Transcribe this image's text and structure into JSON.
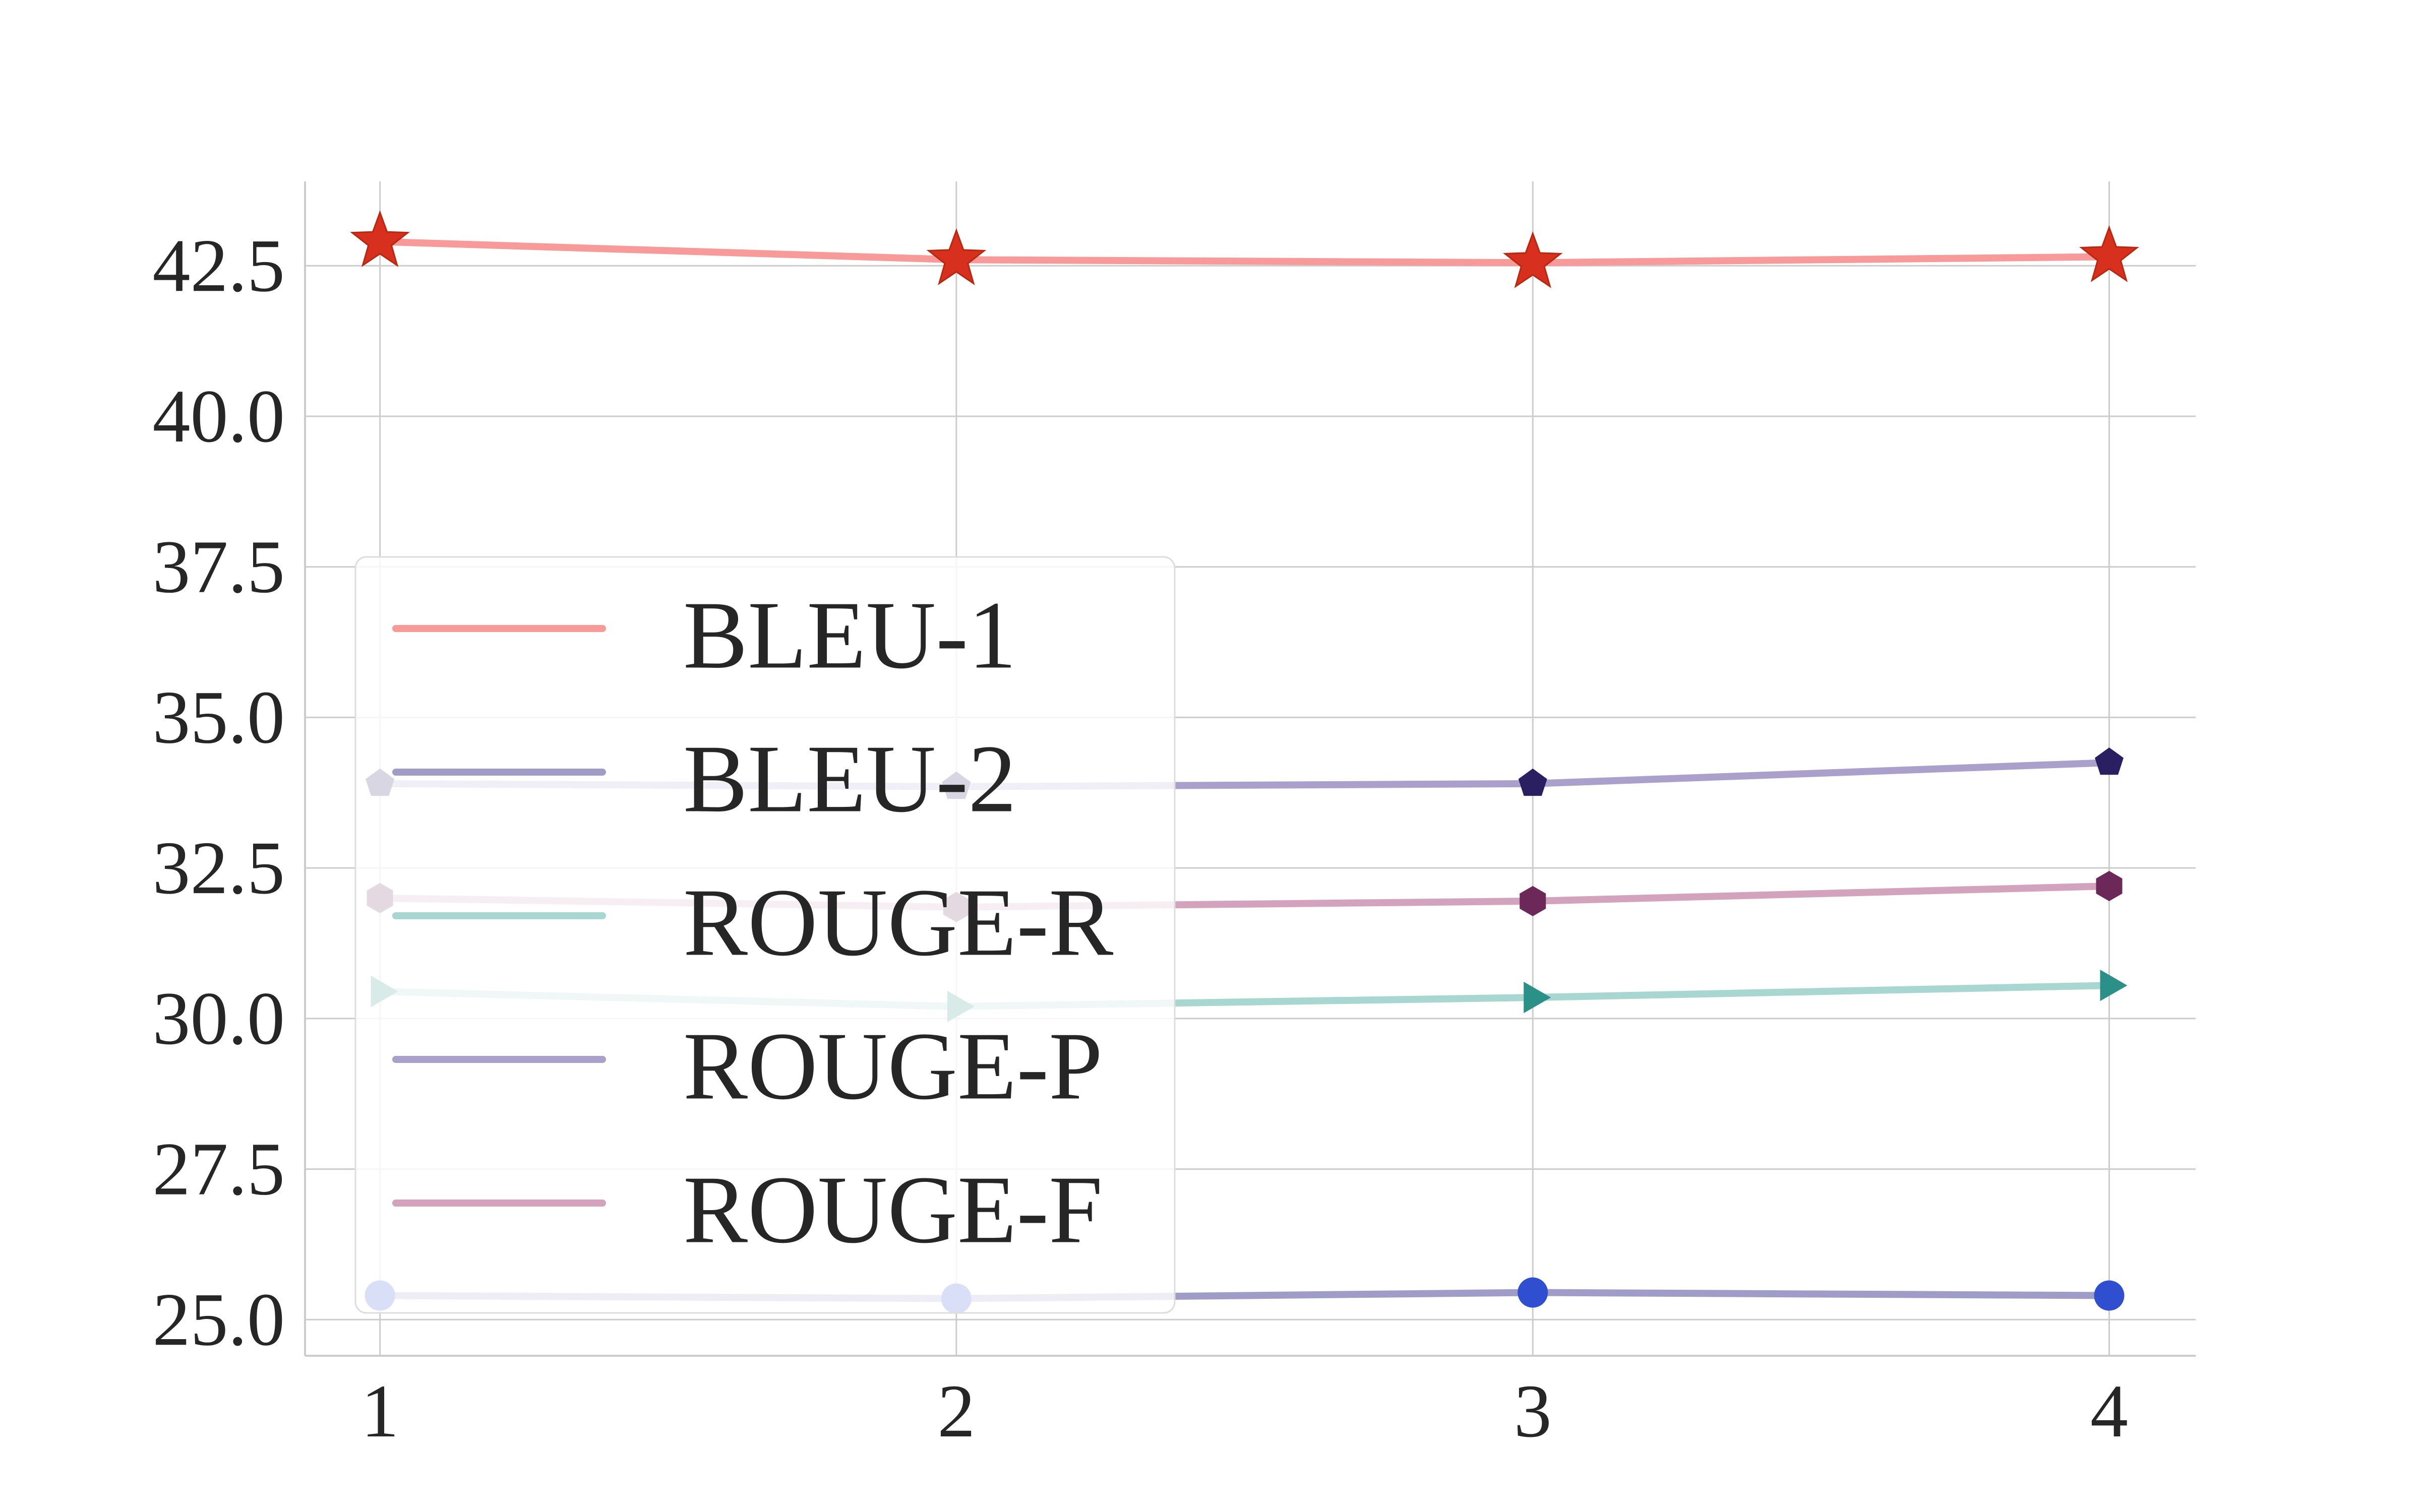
{
  "chart_data": {
    "type": "line",
    "title": "",
    "xlabel": "",
    "ylabel": "",
    "x": [
      1,
      2,
      3,
      4
    ],
    "x_tick_labels": [
      "1",
      "2",
      "3",
      "4"
    ],
    "xlim": [
      0.87,
      4.15
    ],
    "ylim": [
      24.4,
      43.9
    ],
    "y_ticks": [
      25.0,
      27.5,
      30.0,
      32.5,
      35.0,
      37.5,
      40.0,
      42.5
    ],
    "y_tick_labels": [
      "25.0",
      "27.5",
      "30.0",
      "32.5",
      "35.0",
      "37.5",
      "40.0",
      "42.5"
    ],
    "grid": true,
    "legend_position": "center-left",
    "series": [
      {
        "name": "BLEU-1",
        "values": [
          42.9,
          42.6,
          42.55,
          42.65
        ],
        "line_color": "#f89a9a",
        "marker_color": "#d7301f",
        "marker": "star"
      },
      {
        "name": "BLEU-2",
        "values": [
          25.4,
          25.35,
          25.45,
          25.4
        ],
        "line_color": "#9f9cc8",
        "marker_color": "#2f4fd0",
        "marker": "circle"
      },
      {
        "name": "ROUGE-R",
        "values": [
          30.45,
          30.2,
          30.35,
          30.55
        ],
        "line_color": "#a8d6d0",
        "marker_color": "#2a9088",
        "marker": "triangle-right"
      },
      {
        "name": "ROUGE-P",
        "values": [
          33.9,
          33.85,
          33.9,
          34.25
        ],
        "line_color": "#ab9fcb",
        "marker_color": "#2a1f60",
        "marker": "pentagon"
      },
      {
        "name": "ROUGE-F",
        "values": [
          32.0,
          31.85,
          31.95,
          32.2
        ],
        "line_color": "#d3a2bd",
        "marker_color": "#6b2858",
        "marker": "hexagon"
      }
    ],
    "colors": {
      "grid": "#cccccc",
      "axis": "#cccccc",
      "text": "#262626",
      "legend_border": "#dddddd"
    }
  }
}
